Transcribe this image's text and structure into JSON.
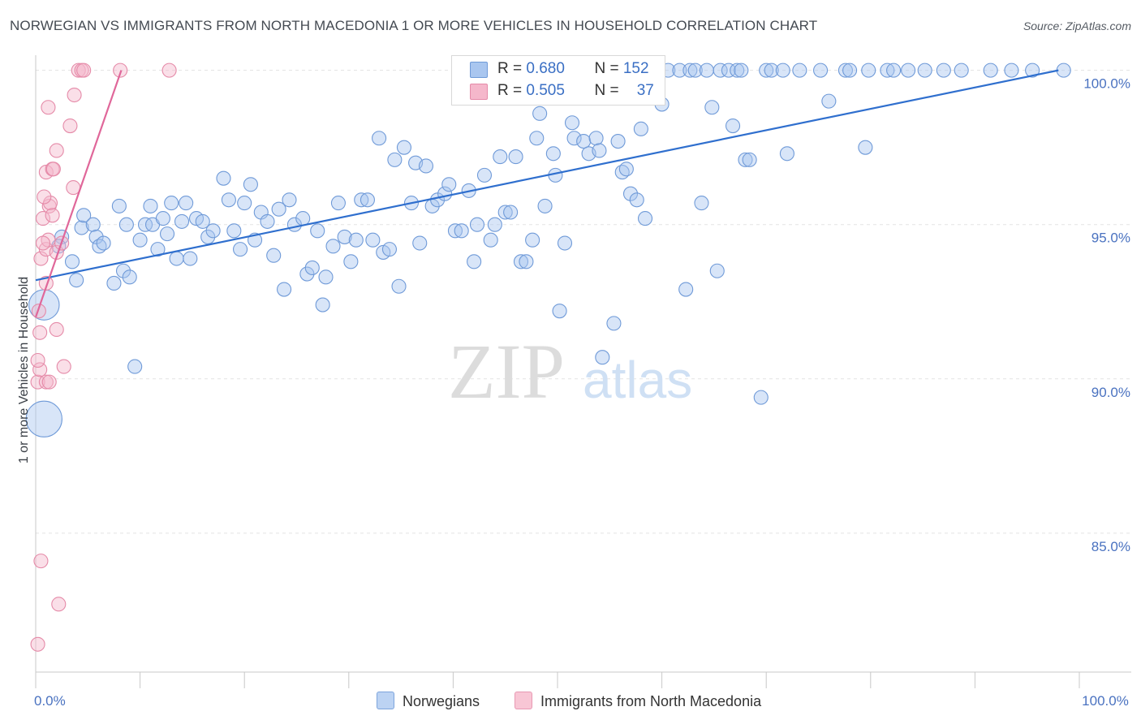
{
  "title": "NORWEGIAN VS IMMIGRANTS FROM NORTH MACEDONIA 1 OR MORE VEHICLES IN HOUSEHOLD CORRELATION CHART",
  "source": "Source: ZipAtlas.com",
  "watermark": {
    "zip": "ZIP",
    "atlas": "atlas"
  },
  "legend_stats": [
    {
      "r_label": "R = ",
      "r_value": "0.680",
      "n_label": "N = ",
      "n_value": "152"
    },
    {
      "r_label": "R = ",
      "r_value": "0.505",
      "n_label": "N = ",
      "n_value": "37"
    }
  ],
  "colors": {
    "blue_fill": "#a9c6ef",
    "blue_stroke": "#6f9ad8",
    "blue_line": "#2f6fce",
    "pink_fill": "#f5b7cb",
    "pink_stroke": "#e58aa8",
    "pink_line": "#e0679a",
    "grid": "#e3e3e3",
    "axis": "#c8c8c8"
  },
  "chart_data": {
    "type": "scatter",
    "title": "NORWEGIAN VS IMMIGRANTS FROM NORTH MACEDONIA 1 OR MORE VEHICLES IN HOUSEHOLD CORRELATION CHART",
    "xlabel": "",
    "ylabel": "1 or more Vehicles in Household",
    "xlim": [
      0,
      100
    ],
    "ylim": [
      80.5,
      100.7
    ],
    "x_tick_labels": [
      {
        "value": 0,
        "label": "0.0%"
      },
      {
        "value": 100,
        "label": "100.0%"
      }
    ],
    "y_tick_labels": [
      {
        "value": 100,
        "label": "100.0%"
      },
      {
        "value": 95,
        "label": "95.0%"
      },
      {
        "value": 90,
        "label": "90.0%"
      },
      {
        "value": 85,
        "label": "85.0%"
      }
    ],
    "x_minor_ticks": [
      0,
      10,
      20,
      30,
      40,
      50,
      60,
      70,
      80,
      90,
      100
    ],
    "grid": true,
    "legend": [
      {
        "name": "Norwegians"
      },
      {
        "name": "Immigrants from North Macedonia"
      }
    ],
    "series": [
      {
        "name": "Norwegians",
        "trend": {
          "x": [
            0,
            98
          ],
          "y": [
            93.2,
            100.0
          ]
        },
        "points": [
          [
            0.8,
            92.4,
            2.2
          ],
          [
            0.8,
            88.7,
            2.6
          ],
          [
            2.5,
            94.6,
            1
          ],
          [
            2.2,
            94.3,
            1
          ],
          [
            3.5,
            93.8,
            1
          ],
          [
            4.4,
            94.9,
            1
          ],
          [
            4.6,
            95.3,
            1
          ],
          [
            3.9,
            93.2,
            1
          ],
          [
            5.5,
            95.0,
            1
          ],
          [
            5.8,
            94.6,
            1
          ],
          [
            6.1,
            94.3,
            1
          ],
          [
            6.5,
            94.4,
            1
          ],
          [
            7.5,
            93.1,
            1
          ],
          [
            8.0,
            95.6,
            1
          ],
          [
            8.4,
            93.5,
            1
          ],
          [
            8.7,
            95.0,
            1
          ],
          [
            9.0,
            93.3,
            1
          ],
          [
            9.5,
            90.4,
            1
          ],
          [
            10.0,
            94.5,
            1
          ],
          [
            10.5,
            95.0,
            1
          ],
          [
            11.0,
            95.6,
            1
          ],
          [
            11.2,
            95.0,
            1
          ],
          [
            11.7,
            94.2,
            1
          ],
          [
            12.2,
            95.2,
            1
          ],
          [
            12.6,
            94.7,
            1
          ],
          [
            13.0,
            95.7,
            1
          ],
          [
            13.5,
            93.9,
            1
          ],
          [
            14.0,
            95.1,
            1
          ],
          [
            14.4,
            95.7,
            1
          ],
          [
            14.8,
            93.9,
            1
          ],
          [
            15.4,
            95.2,
            1
          ],
          [
            16.0,
            95.1,
            1
          ],
          [
            16.5,
            94.6,
            1
          ],
          [
            17.0,
            94.8,
            1
          ],
          [
            18.0,
            96.5,
            1
          ],
          [
            18.5,
            95.8,
            1
          ],
          [
            19.0,
            94.8,
            1
          ],
          [
            19.6,
            94.2,
            1
          ],
          [
            20.0,
            95.7,
            1
          ],
          [
            20.6,
            96.3,
            1
          ],
          [
            21.0,
            94.5,
            1
          ],
          [
            21.6,
            95.4,
            1
          ],
          [
            22.2,
            95.1,
            1
          ],
          [
            22.8,
            94.0,
            1
          ],
          [
            23.3,
            95.5,
            1
          ],
          [
            23.8,
            92.9,
            1
          ],
          [
            24.3,
            95.8,
            1
          ],
          [
            24.8,
            95.0,
            1
          ],
          [
            25.6,
            95.2,
            1
          ],
          [
            26.0,
            93.4,
            1
          ],
          [
            26.5,
            93.6,
            1
          ],
          [
            27.0,
            94.8,
            1
          ],
          [
            27.5,
            92.4,
            1
          ],
          [
            27.8,
            93.3,
            1
          ],
          [
            28.5,
            94.3,
            1
          ],
          [
            29.0,
            95.7,
            1
          ],
          [
            29.6,
            94.6,
            1
          ],
          [
            30.2,
            93.8,
            1
          ],
          [
            30.7,
            94.5,
            1
          ],
          [
            31.2,
            95.8,
            1
          ],
          [
            31.8,
            95.8,
            1
          ],
          [
            32.3,
            94.5,
            1
          ],
          [
            32.9,
            97.8,
            1
          ],
          [
            33.3,
            94.1,
            1
          ],
          [
            33.9,
            94.2,
            1
          ],
          [
            34.4,
            97.1,
            1
          ],
          [
            34.8,
            93.0,
            1
          ],
          [
            35.3,
            97.5,
            1
          ],
          [
            36.0,
            95.7,
            1
          ],
          [
            36.4,
            97.0,
            1
          ],
          [
            36.8,
            94.4,
            1
          ],
          [
            37.4,
            96.9,
            1
          ],
          [
            38.0,
            95.6,
            1
          ],
          [
            38.5,
            95.8,
            1
          ],
          [
            39.2,
            96.0,
            1
          ],
          [
            39.6,
            96.3,
            1
          ],
          [
            40.2,
            94.8,
            1
          ],
          [
            40.8,
            94.8,
            1
          ],
          [
            41.5,
            96.1,
            1
          ],
          [
            42.0,
            93.8,
            1
          ],
          [
            42.3,
            95.0,
            1
          ],
          [
            43.0,
            96.6,
            1
          ],
          [
            43.6,
            94.5,
            1
          ],
          [
            44.0,
            95.0,
            1
          ],
          [
            44.5,
            97.2,
            1
          ],
          [
            45.0,
            95.4,
            1
          ],
          [
            45.5,
            95.4,
            1
          ],
          [
            46.0,
            97.2,
            1
          ],
          [
            46.5,
            93.8,
            1
          ],
          [
            47.0,
            93.8,
            1
          ],
          [
            47.6,
            94.5,
            1
          ],
          [
            48.0,
            97.8,
            1
          ],
          [
            48.3,
            98.6,
            1
          ],
          [
            48.8,
            95.6,
            1
          ],
          [
            49.6,
            97.3,
            1
          ],
          [
            49.8,
            96.6,
            1
          ],
          [
            50.2,
            92.2,
            1
          ],
          [
            50.7,
            94.4,
            1
          ],
          [
            51.4,
            98.3,
            1
          ],
          [
            51.6,
            97.8,
            1
          ],
          [
            52.5,
            97.7,
            1
          ],
          [
            53.0,
            97.3,
            1
          ],
          [
            53.7,
            97.8,
            1
          ],
          [
            54.0,
            97.4,
            1
          ],
          [
            54.3,
            90.7,
            1
          ],
          [
            55.4,
            91.8,
            1
          ],
          [
            55.8,
            97.7,
            1
          ],
          [
            56.2,
            96.7,
            1
          ],
          [
            56.6,
            96.8,
            1
          ],
          [
            57.0,
            96.0,
            1
          ],
          [
            57.6,
            95.8,
            1
          ],
          [
            58.0,
            98.1,
            1
          ],
          [
            58.4,
            95.2,
            1
          ],
          [
            60.0,
            98.9,
            1
          ],
          [
            60.6,
            100.0,
            1
          ],
          [
            61.7,
            100.0,
            1
          ],
          [
            62.3,
            92.9,
            1
          ],
          [
            62.7,
            100.0,
            1
          ],
          [
            63.2,
            100.0,
            1
          ],
          [
            63.8,
            95.7,
            1
          ],
          [
            64.3,
            100.0,
            1
          ],
          [
            64.8,
            98.8,
            1
          ],
          [
            65.3,
            93.5,
            1
          ],
          [
            65.6,
            100.0,
            1
          ],
          [
            66.4,
            100.0,
            1
          ],
          [
            66.8,
            98.2,
            1
          ],
          [
            67.2,
            100.0,
            1
          ],
          [
            67.6,
            100.0,
            1
          ],
          [
            68.0,
            97.1,
            1
          ],
          [
            68.4,
            97.1,
            1
          ],
          [
            69.5,
            89.4,
            1
          ],
          [
            70.0,
            100.0,
            1
          ],
          [
            70.5,
            100.0,
            1
          ],
          [
            71.6,
            100.0,
            1
          ],
          [
            72.0,
            97.3,
            1
          ],
          [
            73.2,
            100.0,
            1
          ],
          [
            75.2,
            100.0,
            1
          ],
          [
            76.0,
            99.0,
            1
          ],
          [
            77.6,
            100.0,
            1
          ],
          [
            78.0,
            100.0,
            1
          ],
          [
            79.5,
            97.5,
            1
          ],
          [
            79.8,
            100.0,
            1
          ],
          [
            81.6,
            100.0,
            1
          ],
          [
            82.2,
            100.0,
            1
          ],
          [
            83.6,
            100.0,
            1
          ],
          [
            85.2,
            100.0,
            1
          ],
          [
            87.0,
            100.0,
            1
          ],
          [
            88.7,
            100.0,
            1
          ],
          [
            91.5,
            100.0,
            1
          ],
          [
            93.5,
            100.0,
            1
          ],
          [
            95.5,
            100.0,
            1
          ],
          [
            98.5,
            100.0,
            1
          ]
        ]
      },
      {
        "name": "Immigrants from North Macedonia",
        "trend": {
          "x": [
            0,
            8.2
          ],
          "y": [
            92.0,
            100.0
          ]
        },
        "points": [
          [
            0.2,
            81.4,
            1
          ],
          [
            0.5,
            84.1,
            1
          ],
          [
            2.2,
            82.7,
            1
          ],
          [
            0.2,
            89.9,
            1
          ],
          [
            0.4,
            90.3,
            1
          ],
          [
            0.2,
            90.6,
            1
          ],
          [
            1.0,
            89.9,
            1
          ],
          [
            1.3,
            89.9,
            1
          ],
          [
            0.4,
            91.5,
            1
          ],
          [
            2.0,
            91.6,
            1
          ],
          [
            0.3,
            92.2,
            1
          ],
          [
            2.7,
            90.4,
            1
          ],
          [
            1.0,
            93.1,
            1
          ],
          [
            0.5,
            93.9,
            1
          ],
          [
            1.0,
            94.2,
            1
          ],
          [
            1.2,
            94.5,
            1
          ],
          [
            2.0,
            94.1,
            1
          ],
          [
            2.5,
            94.4,
            1
          ],
          [
            0.7,
            94.4,
            1
          ],
          [
            0.7,
            95.2,
            1
          ],
          [
            1.3,
            95.6,
            1
          ],
          [
            1.4,
            95.7,
            1
          ],
          [
            1.6,
            95.3,
            1
          ],
          [
            0.8,
            95.9,
            1
          ],
          [
            1.0,
            96.7,
            1
          ],
          [
            1.6,
            96.8,
            1
          ],
          [
            1.7,
            96.8,
            1
          ],
          [
            3.6,
            96.2,
            1
          ],
          [
            2.0,
            97.4,
            1
          ],
          [
            3.3,
            98.2,
            1
          ],
          [
            1.2,
            98.8,
            1
          ],
          [
            3.7,
            99.2,
            1
          ],
          [
            4.1,
            100.0,
            1
          ],
          [
            4.4,
            100.0,
            1
          ],
          [
            4.6,
            100.0,
            1
          ],
          [
            8.1,
            100.0,
            1
          ],
          [
            12.8,
            100.0,
            1
          ]
        ]
      }
    ]
  }
}
